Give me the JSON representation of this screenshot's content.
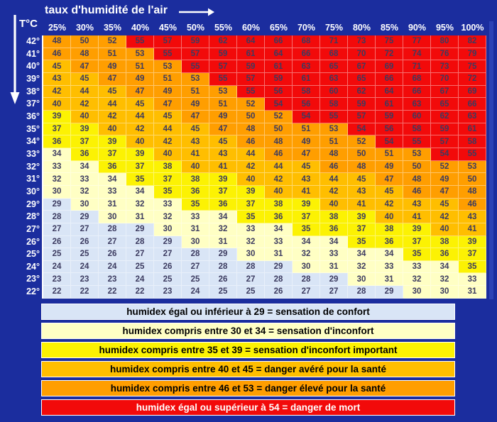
{
  "header": {
    "title": "taux d'humidité de l'air",
    "y_axis_label": "T°C"
  },
  "colors": {
    "background": "#1B2D9E",
    "header_text": "#FFFFFF",
    "cell_text": "#3C3B60",
    "grid_line": "#FFFFFF",
    "edge_strip": "#2C42B5"
  },
  "chart_data": {
    "type": "heatmap",
    "title": "taux d'humidité de l'air",
    "xlabel": "taux d'humidité de l'air (%)",
    "ylabel": "T°C",
    "x_tick_labels": [
      "25%",
      "30%",
      "35%",
      "40%",
      "45%",
      "50%",
      "55%",
      "60%",
      "65%",
      "70%",
      "75%",
      "80%",
      "85%",
      "90%",
      "95%",
      "100%"
    ],
    "humidity_percent": [
      25,
      30,
      35,
      40,
      45,
      50,
      55,
      60,
      65,
      70,
      75,
      80,
      85,
      90,
      95,
      100
    ],
    "y_tick_labels": [
      "42°",
      "41°",
      "40°",
      "39°",
      "38°",
      "37°",
      "36°",
      "35°",
      "34°",
      "33°",
      "32°",
      "31°",
      "30°",
      "29°",
      "28°",
      "27°",
      "26°",
      "25°",
      "24°",
      "23°",
      "22°"
    ],
    "temperature_c": [
      42,
      41,
      40,
      39,
      38,
      37,
      36,
      35,
      34,
      33,
      32,
      31,
      30,
      29,
      28,
      27,
      26,
      25,
      24,
      23,
      22
    ],
    "rows": [
      [
        48,
        50,
        52,
        55,
        57,
        59,
        62,
        64,
        66,
        68,
        71,
        73,
        75,
        77,
        80,
        82
      ],
      [
        46,
        48,
        51,
        53,
        55,
        57,
        59,
        61,
        64,
        66,
        68,
        70,
        72,
        74,
        76,
        79
      ],
      [
        45,
        47,
        49,
        51,
        53,
        55,
        57,
        59,
        61,
        63,
        65,
        67,
        69,
        71,
        73,
        75
      ],
      [
        43,
        45,
        47,
        49,
        51,
        53,
        55,
        57,
        59,
        61,
        63,
        65,
        66,
        68,
        70,
        72
      ],
      [
        42,
        44,
        45,
        47,
        49,
        51,
        53,
        55,
        56,
        58,
        60,
        62,
        64,
        66,
        67,
        69
      ],
      [
        40,
        42,
        44,
        45,
        47,
        49,
        51,
        52,
        54,
        56,
        58,
        59,
        61,
        63,
        65,
        66
      ],
      [
        39,
        40,
        42,
        44,
        45,
        47,
        49,
        50,
        52,
        54,
        55,
        57,
        59,
        60,
        62,
        63
      ],
      [
        37,
        39,
        40,
        42,
        44,
        45,
        47,
        48,
        50,
        51,
        53,
        54,
        56,
        58,
        59,
        61
      ],
      [
        36,
        37,
        39,
        40,
        42,
        43,
        45,
        46,
        48,
        49,
        51,
        52,
        54,
        55,
        57,
        58
      ],
      [
        34,
        36,
        37,
        39,
        40,
        41,
        43,
        44,
        46,
        47,
        48,
        50,
        51,
        53,
        54,
        55
      ],
      [
        33,
        34,
        36,
        37,
        38,
        40,
        41,
        42,
        44,
        45,
        46,
        48,
        49,
        50,
        52,
        53
      ],
      [
        32,
        33,
        34,
        35,
        37,
        38,
        39,
        40,
        42,
        43,
        44,
        45,
        47,
        48,
        49,
        50
      ],
      [
        30,
        32,
        33,
        34,
        35,
        36,
        37,
        39,
        40,
        41,
        42,
        43,
        45,
        46,
        47,
        48
      ],
      [
        29,
        30,
        31,
        32,
        33,
        35,
        36,
        37,
        38,
        39,
        40,
        41,
        42,
        43,
        45,
        46
      ],
      [
        28,
        29,
        30,
        31,
        32,
        33,
        34,
        35,
        36,
        37,
        38,
        39,
        40,
        41,
        42,
        43
      ],
      [
        27,
        27,
        28,
        29,
        30,
        31,
        32,
        33,
        34,
        35,
        36,
        37,
        38,
        39,
        40,
        41
      ],
      [
        26,
        26,
        27,
        28,
        29,
        30,
        31,
        32,
        33,
        34,
        34,
        35,
        36,
        37,
        38,
        39
      ],
      [
        25,
        25,
        26,
        27,
        27,
        28,
        29,
        30,
        31,
        32,
        33,
        34,
        34,
        35,
        36,
        37
      ],
      [
        24,
        24,
        24,
        25,
        26,
        27,
        28,
        28,
        29,
        30,
        31,
        32,
        33,
        33,
        34,
        35
      ],
      [
        23,
        23,
        23,
        24,
        25,
        25,
        26,
        27,
        28,
        28,
        29,
        30,
        31,
        32,
        32,
        33
      ],
      [
        22,
        22,
        22,
        22,
        23,
        24,
        25,
        25,
        26,
        27,
        27,
        28,
        29,
        30,
        30,
        31
      ]
    ],
    "categories": [
      {
        "id": "comfort",
        "max": 29,
        "color": "#D9E5F6",
        "text_color": "#000000",
        "label": "humidex égal ou inférieur à 29  =  sensation de confort"
      },
      {
        "id": "discomfort",
        "max": 34,
        "color": "#FFFFC4",
        "text_color": "#000000",
        "label": "humidex compris entre 30 et 34 = sensation d'inconfort"
      },
      {
        "id": "strong-discomfort",
        "max": 39,
        "color": "#FCF203",
        "text_color": "#000000",
        "label": "humidex compris entre 35 et 39 = sensation d'inconfort important"
      },
      {
        "id": "proven-danger",
        "max": 45,
        "color": "#FFBE00",
        "text_color": "#000000",
        "label": "humidex compris entre 40 et 45 = danger avéré pour la santé"
      },
      {
        "id": "high-danger",
        "max": 53,
        "color": "#FF9E00",
        "text_color": "#000000",
        "label": "humidex compris entre 46 et 53 = danger élevé pour la santé"
      },
      {
        "id": "death-danger",
        "max": 999,
        "color": "#F20A0A",
        "text_color": "#FFFFFF",
        "label": "humidex égal ou supérieur à 54 = danger de mort"
      }
    ]
  }
}
